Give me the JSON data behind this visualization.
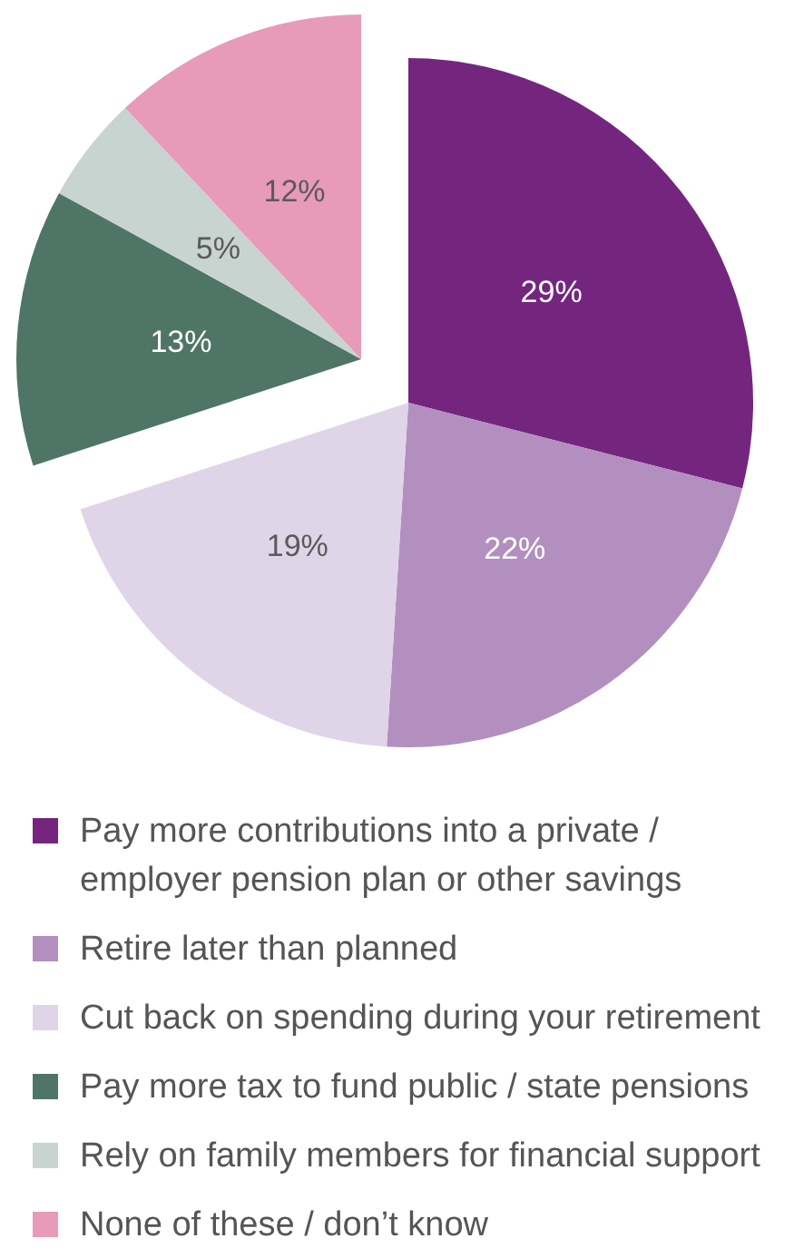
{
  "chart_data": {
    "type": "pie",
    "categories": [
      "Pay more contributions into a private / employer pension plan or other savings",
      "Retire later than planned",
      "Cut back on spending during your retirement",
      "Pay more tax to fund public / state pensions",
      "Rely on family members for financial support",
      "None of these / don’t know"
    ],
    "values": [
      29,
      22,
      19,
      13,
      5,
      12
    ],
    "value_labels": [
      "29%",
      "22%",
      "19%",
      "13%",
      "5%",
      "12%"
    ],
    "colors": [
      "#74267f",
      "#b38fbf",
      "#e0d4e8",
      "#4f7566",
      "#c8d4d0",
      "#e89ab9"
    ],
    "legend": "bottom"
  }
}
